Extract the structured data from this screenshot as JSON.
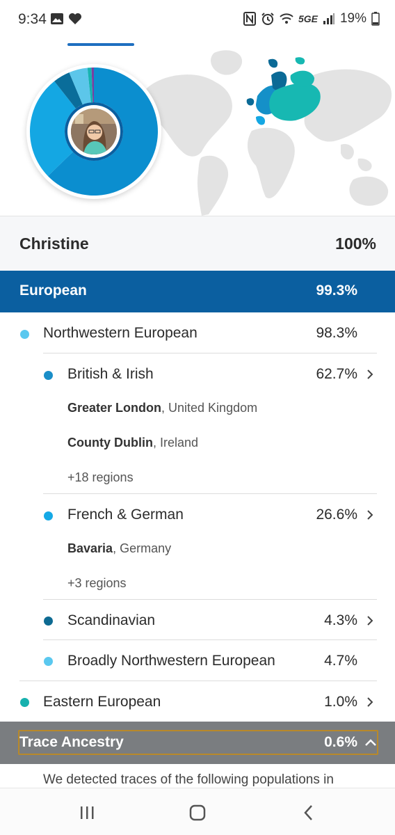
{
  "status_bar": {
    "time": "9:34",
    "battery": "19%",
    "network": "5GE",
    "left_icons": [
      "image-icon",
      "heart-icon"
    ],
    "right_icons": [
      "nfc-icon",
      "alarm-icon",
      "wifi-icon",
      "signal-icon",
      "battery-icon"
    ]
  },
  "hero": {
    "donut_segments": [
      {
        "label": "British & Irish",
        "value": 62.7,
        "color": "#0b8ecf"
      },
      {
        "label": "French & German",
        "value": 26.6,
        "color": "#14a7e3"
      },
      {
        "label": "Scandinavian",
        "value": 4.3,
        "color": "#0a6d9a"
      },
      {
        "label": "Broadly Northwestern European",
        "value": 4.7,
        "color": "#5cc6ea"
      },
      {
        "label": "Eastern European",
        "value": 1.0,
        "color": "#16b3b0"
      },
      {
        "label": "Trace Ancestry",
        "value": 0.6,
        "color": "#7b3fa0"
      }
    ]
  },
  "summary": {
    "name": "Christine",
    "percent": "100%"
  },
  "region": {
    "name": "European",
    "percent": "99.3%"
  },
  "northwestern": {
    "name": "Northwestern European",
    "percent": "98.3%",
    "color": "#5ac8ef"
  },
  "british": {
    "name": "British & Irish",
    "percent": "62.7%",
    "color": "#1a8ec8",
    "sub1_bold": "Greater London",
    "sub1_rest": ", United Kingdom",
    "sub2_bold": "County Dublin",
    "sub2_rest": ", Ireland",
    "more": "+18 regions"
  },
  "french": {
    "name": "French & German",
    "percent": "26.6%",
    "color": "#15a9e6",
    "sub1_bold": "Bavaria",
    "sub1_rest": ", Germany",
    "more": "+3 regions"
  },
  "scandinavian": {
    "name": "Scandinavian",
    "percent": "4.3%",
    "color": "#0d6a92"
  },
  "broadly": {
    "name": "Broadly Northwestern European",
    "percent": "4.7%",
    "color": "#5ac8ef"
  },
  "eastern": {
    "name": "Eastern European",
    "percent": "1.0%",
    "color": "#17b1ae"
  },
  "trace": {
    "name": "Trace Ancestry",
    "percent": "0.6%",
    "description": "We detected traces of the following populations in"
  }
}
